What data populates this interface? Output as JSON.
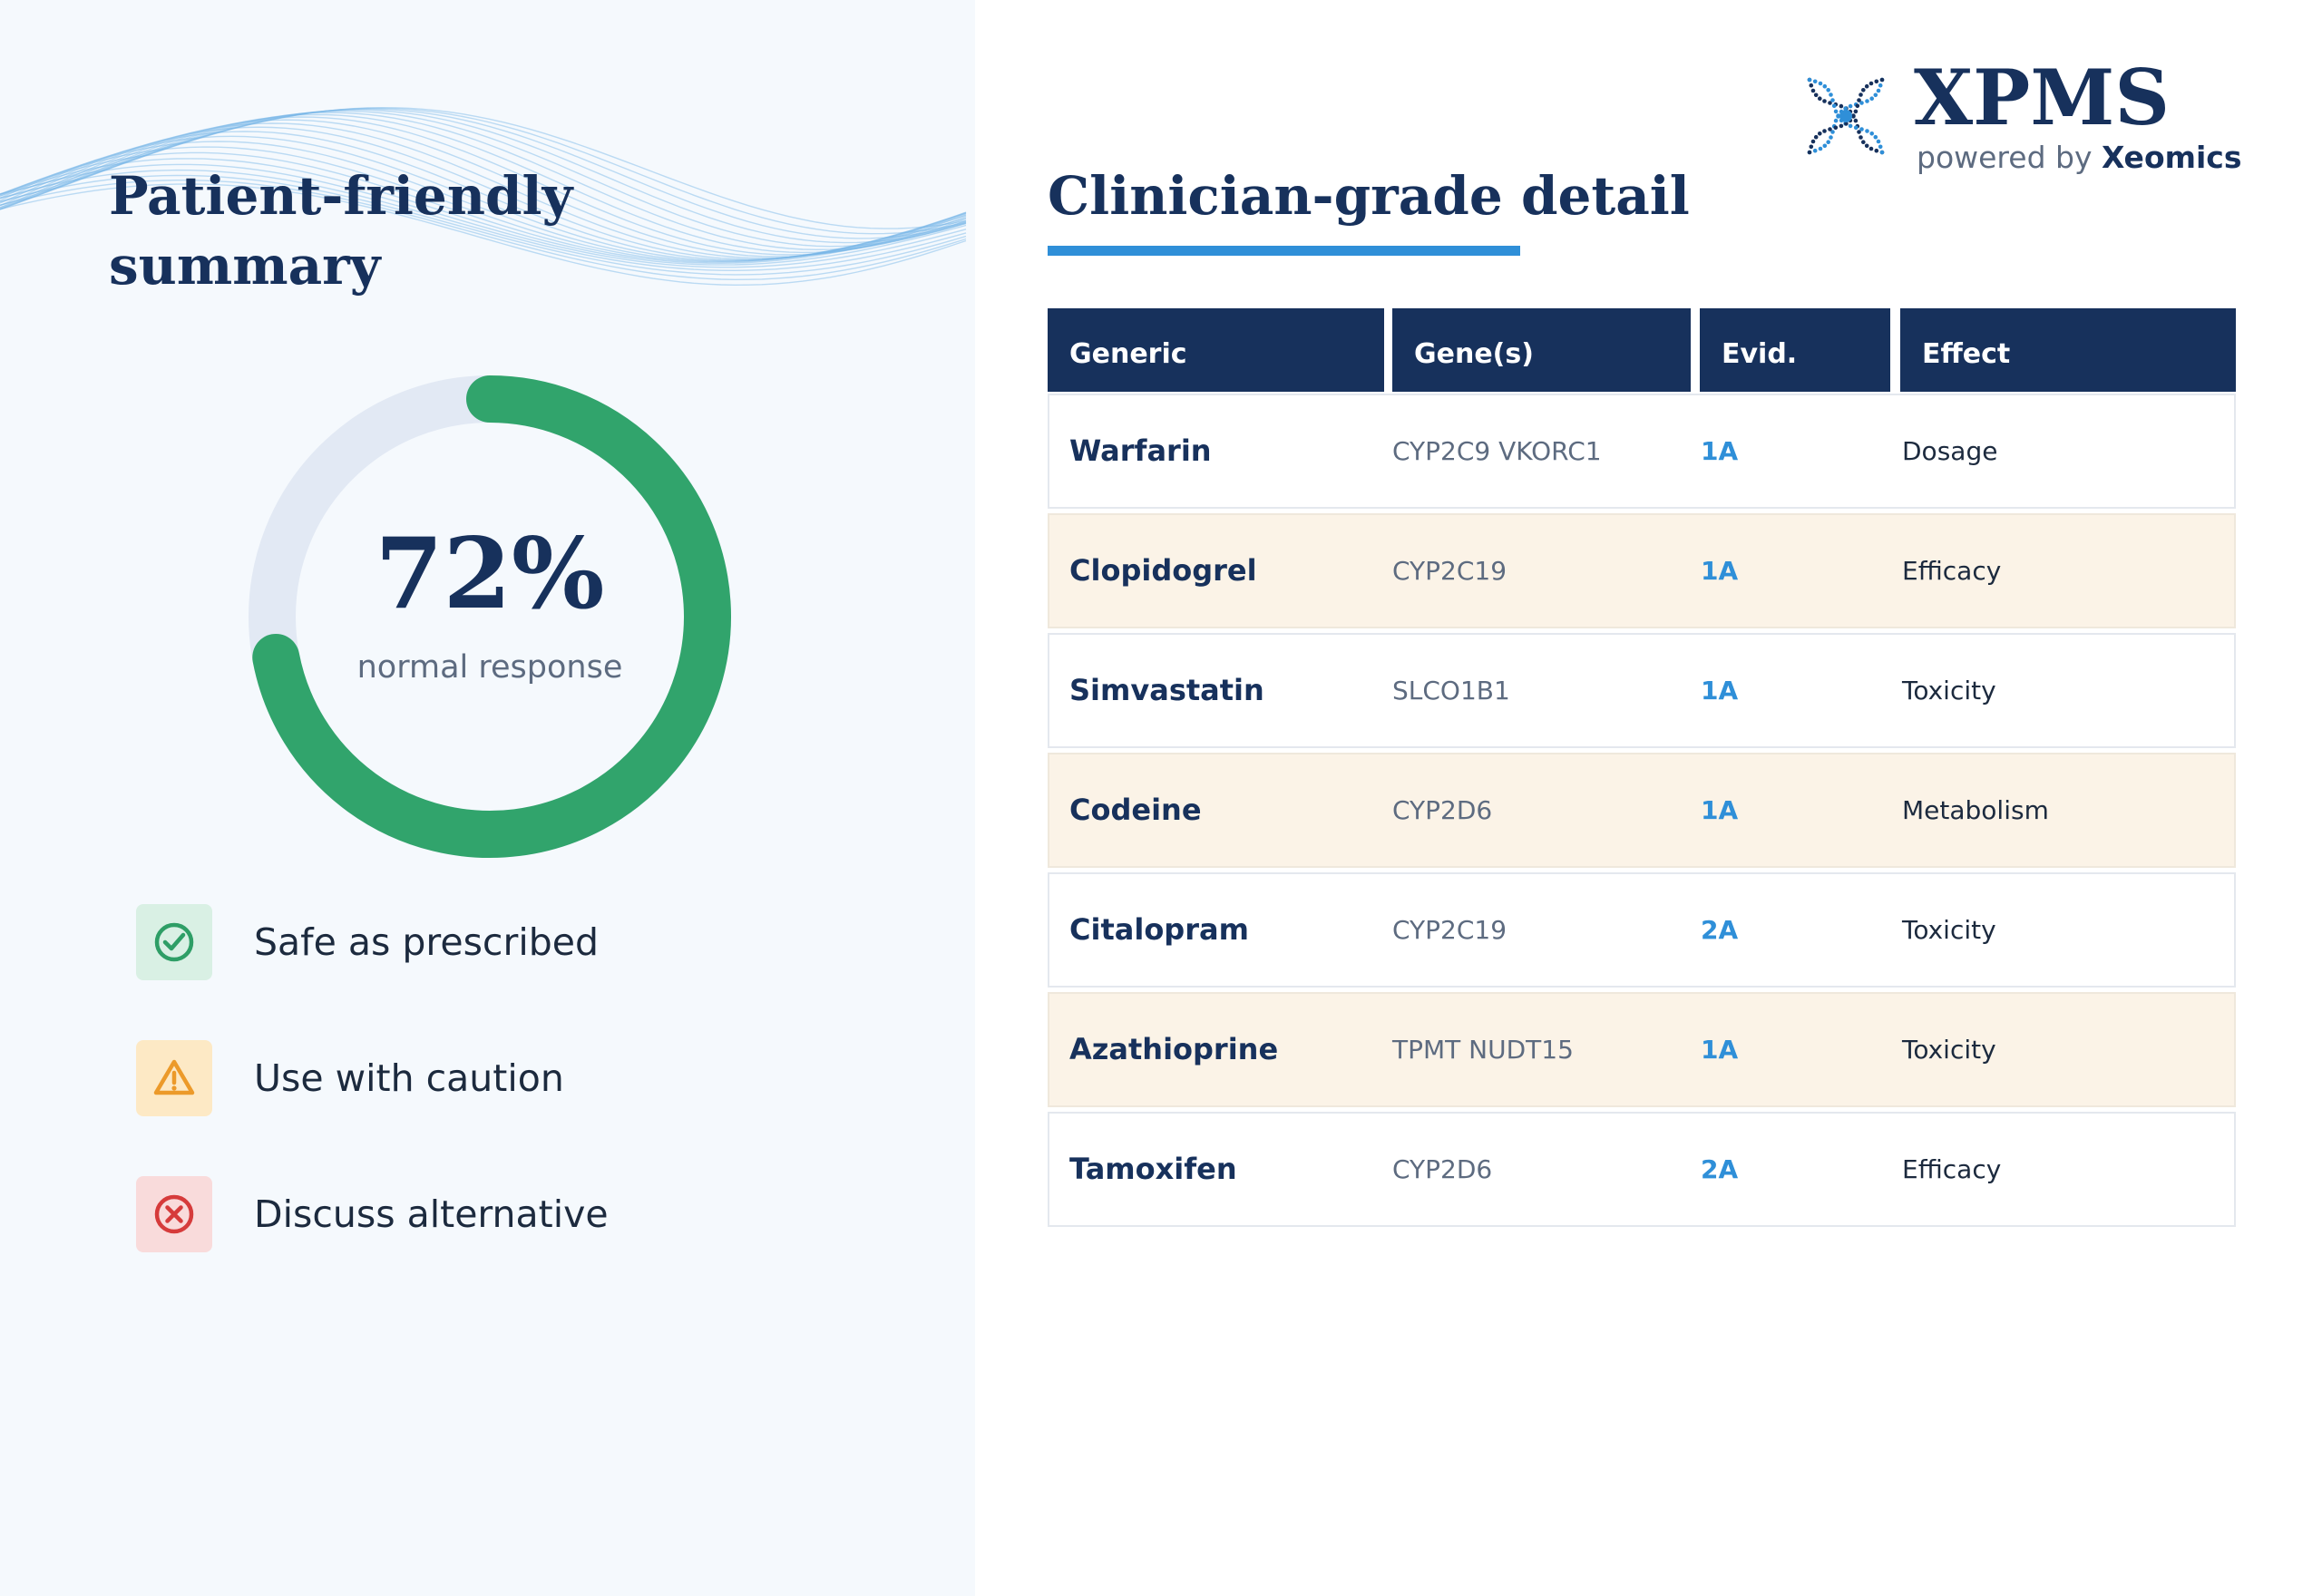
{
  "colors": {
    "navy": "#17315c",
    "accent_blue": "#2f8fd8",
    "gauge_green": "#31a46c",
    "gauge_track": "#e2e9f4",
    "left_bg": "#f5f9fd",
    "alt_row": "#fbf3e7",
    "safe_bg": "#d9f0e4",
    "safe_fg": "#2e9e66",
    "caution_bg": "#fde9c5",
    "caution_fg": "#ec9a2a",
    "alternative_bg": "#f9dbdb",
    "alternative_fg": "#d63b3b"
  },
  "brand": {
    "name": "XPMS",
    "powered_by": "powered by",
    "company": "Xeomics",
    "logo_icon": "dna-x-logo-icon"
  },
  "left": {
    "title": "Patient-friendly summary",
    "gauge": {
      "value_fraction": 0.72,
      "value_label": "72%",
      "caption": "normal response"
    },
    "legend": [
      {
        "icon": "check-circle-icon",
        "label": "Safe as prescribed",
        "status": "safe"
      },
      {
        "icon": "warning-triangle-icon",
        "label": "Use with caution",
        "status": "caution"
      },
      {
        "icon": "x-circle-icon",
        "label": "Discuss alternative",
        "status": "alternative"
      }
    ]
  },
  "right": {
    "title": "Clinician-grade detail",
    "table": {
      "columns": [
        "Generic",
        "Gene(s)",
        "Evid.",
        "Effect"
      ],
      "rows": [
        {
          "generic": "Warfarin",
          "genes": "CYP2C9 VKORC1",
          "evidence": "1A",
          "effect": "Dosage"
        },
        {
          "generic": "Clopidogrel",
          "genes": "CYP2C19",
          "evidence": "1A",
          "effect": "Efficacy"
        },
        {
          "generic": "Simvastatin",
          "genes": "SLCO1B1",
          "evidence": "1A",
          "effect": "Toxicity"
        },
        {
          "generic": "Codeine",
          "genes": "CYP2D6",
          "evidence": "1A",
          "effect": "Metabolism"
        },
        {
          "generic": "Citalopram",
          "genes": "CYP2C19",
          "evidence": "2A",
          "effect": "Toxicity"
        },
        {
          "generic": "Azathioprine",
          "genes": "TPMT NUDT15",
          "evidence": "1A",
          "effect": "Toxicity"
        },
        {
          "generic": "Tamoxifen",
          "genes": "CYP2D6",
          "evidence": "2A",
          "effect": "Efficacy"
        }
      ]
    }
  }
}
